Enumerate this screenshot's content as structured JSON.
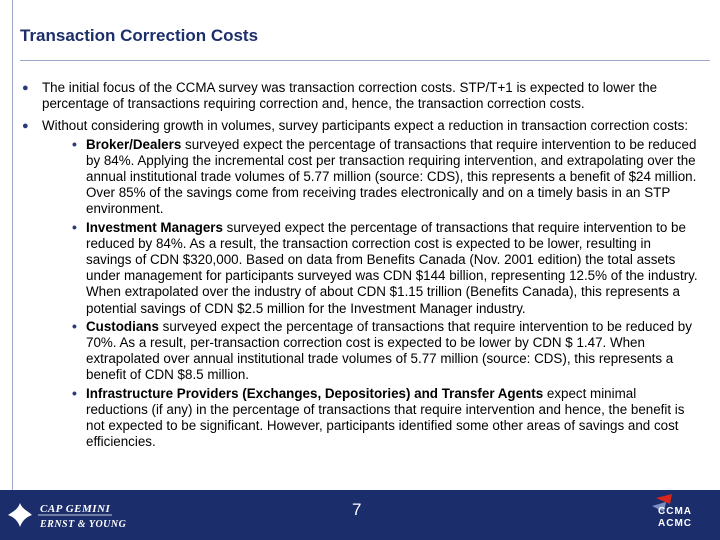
{
  "title": "Transaction Correction Costs",
  "bullets": [
    "The initial focus of the CCMA survey was transaction correction costs.  STP/T+1 is expected to lower the percentage of transactions requiring correction and, hence, the transaction correction costs.",
    "Without considering growth in volumes, survey participants expect a reduction in transaction correction costs:"
  ],
  "sub_bullets": [
    {
      "bold": "Broker/Dealers",
      "text": " surveyed expect the percentage of transactions that require intervention to be reduced by 84%. Applying the incremental cost per transaction requiring intervention, and extrapolating over the annual institutional trade volumes of 5.77 million (source: CDS), this represents a benefit of $24 million.  Over 85% of the savings come from receiving trades electronically and on a timely basis in an STP environment."
    },
    {
      "bold": "Investment Managers",
      "text": " surveyed expect the percentage of transactions that require intervention to be reduced by 84%.  As a result, the transaction correction cost is expected to be lower, resulting in savings of CDN $320,000.  Based on data from Benefits Canada (Nov. 2001 edition) the total assets under management for participants surveyed was CDN $144 billion, representing 12.5% of the industry.  When extrapolated over the industry of about CDN $1.15 trillion (Benefits Canada), this represents a potential savings of CDN $2.5 million for the Investment Manager industry."
    },
    {
      "bold": "Custodians",
      "text": " surveyed expect the percentage of transactions that require intervention to be reduced by 70%.  As a result, per-transaction correction cost is expected to be lower by CDN $ 1.47.  When extrapolated over annual institutional trade volumes of 5.77 million (source: CDS), this represents a benefit of CDN $8.5 million."
    },
    {
      "bold": "Infrastructure Providers (Exchanges, Depositories) and Transfer Agents",
      "text": " expect minimal reductions (if any) in the percentage of transactions that require intervention and hence, the benefit is not expected to be significant.  However, participants identified some other areas of savings and cost efficiencies."
    }
  ],
  "footer": {
    "page_number": "7",
    "left_logo_line1": "CAP GEMINI",
    "left_logo_line2": "ERNST & YOUNG",
    "right_logo_line1": "CCMA",
    "right_logo_line2": "ACMC"
  }
}
